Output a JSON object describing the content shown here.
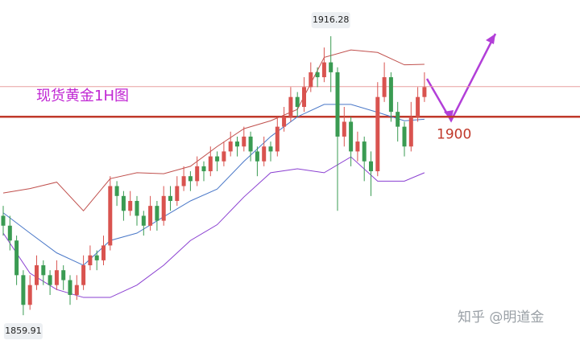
{
  "chart_data": {
    "type": "candlestick",
    "title": "现货黄金1H图",
    "watermark": "知乎 @明道金",
    "ylim": [
      1854.9,
      1923.6
    ],
    "up_color": "#d9534f",
    "down_color": "#3a9b52",
    "candles": [
      [
        1880,
        1882,
        1876,
        1878
      ],
      [
        1878,
        1880,
        1873,
        1875
      ],
      [
        1875,
        1876,
        1866,
        1868
      ],
      [
        1868,
        1869,
        1859.91,
        1862
      ],
      [
        1862,
        1868,
        1861,
        1866
      ],
      [
        1866,
        1872,
        1865,
        1870
      ],
      [
        1870,
        1871,
        1866,
        1868
      ],
      [
        1868,
        1869,
        1864,
        1866
      ],
      [
        1866,
        1871,
        1865,
        1869
      ],
      [
        1869,
        1870,
        1865,
        1867
      ],
      [
        1867,
        1868,
        1862,
        1864
      ],
      [
        1864,
        1868,
        1863,
        1866
      ],
      [
        1866,
        1872,
        1865,
        1870
      ],
      [
        1870,
        1874,
        1869,
        1872
      ],
      [
        1872,
        1873,
        1869,
        1871
      ],
      [
        1871,
        1876,
        1870,
        1874
      ],
      [
        1874,
        1888,
        1873,
        1886
      ],
      [
        1886,
        1887,
        1882,
        1884
      ],
      [
        1884,
        1885,
        1879,
        1881
      ],
      [
        1881,
        1885,
        1880,
        1883
      ],
      [
        1883,
        1884,
        1878,
        1880
      ],
      [
        1880,
        1881,
        1876,
        1878
      ],
      [
        1878,
        1884,
        1877,
        1882
      ],
      [
        1882,
        1883,
        1877,
        1879
      ],
      [
        1879,
        1886,
        1878,
        1884
      ],
      [
        1884,
        1886,
        1881,
        1883
      ],
      [
        1883,
        1888,
        1882,
        1886
      ],
      [
        1886,
        1890,
        1885,
        1888
      ],
      [
        1888,
        1889,
        1885,
        1887
      ],
      [
        1887,
        1892,
        1886,
        1890
      ],
      [
        1890,
        1891,
        1887,
        1889
      ],
      [
        1889,
        1894,
        1888,
        1892
      ],
      [
        1892,
        1893,
        1889,
        1891
      ],
      [
        1891,
        1895,
        1890,
        1893
      ],
      [
        1893,
        1897,
        1892,
        1895
      ],
      [
        1895,
        1896,
        1892,
        1894
      ],
      [
        1894,
        1898,
        1893,
        1896
      ],
      [
        1896,
        1897,
        1891,
        1893
      ],
      [
        1893,
        1894,
        1888,
        1891
      ],
      [
        1891,
        1896,
        1890,
        1894
      ],
      [
        1894,
        1895,
        1891,
        1893
      ],
      [
        1893,
        1900,
        1892,
        1898
      ],
      [
        1898,
        1902,
        1897,
        1900
      ],
      [
        1900,
        1906,
        1899,
        1904
      ],
      [
        1904,
        1905,
        1900,
        1902
      ],
      [
        1902,
        1908,
        1901,
        1906
      ],
      [
        1906,
        1911,
        1905,
        1909
      ],
      [
        1909,
        1910,
        1906,
        1908
      ],
      [
        1908,
        1914,
        1907,
        1911
      ],
      [
        1911,
        1916.28,
        1905,
        1909
      ],
      [
        1909,
        1910,
        1881,
        1896
      ],
      [
        1896,
        1902,
        1894,
        1899
      ],
      [
        1899,
        1900,
        1890,
        1893
      ],
      [
        1893,
        1897,
        1891,
        1895
      ],
      [
        1895,
        1896,
        1887,
        1891
      ],
      [
        1891,
        1893,
        1884,
        1889
      ],
      [
        1889,
        1907,
        1888,
        1904
      ],
      [
        1904,
        1911,
        1903,
        1908
      ],
      [
        1908,
        1909,
        1899,
        1901
      ],
      [
        1901,
        1903,
        1895,
        1898
      ],
      [
        1898,
        1899,
        1892,
        1894
      ],
      [
        1894,
        1903,
        1893,
        1900
      ],
      [
        1900,
        1906,
        1899,
        1904
      ],
      [
        1904,
        1909,
        1903,
        1906
      ]
    ],
    "bands": {
      "x": [
        0,
        4,
        8,
        12,
        16,
        20,
        24,
        28,
        32,
        36,
        40,
        44,
        48,
        52,
        56,
        60,
        63
      ],
      "series": [
        {
          "color": "#c0504d",
          "values": [
            1884.6,
            1885.5,
            1886.8,
            1881,
            1887.5,
            1888.7,
            1888.5,
            1890,
            1894,
            1897.6,
            1899.2,
            1901.5,
            1912,
            1913.5,
            1913,
            1910.5,
            1910.6
          ]
        },
        {
          "color": "#4a78c8",
          "values": [
            1880.6,
            1876.5,
            1872.5,
            1870,
            1875,
            1876.5,
            1879.8,
            1883,
            1885.4,
            1891,
            1896,
            1900,
            1902.5,
            1902.5,
            1900.9,
            1899.2,
            1899.5
          ]
        },
        {
          "color": "#8a3fd1",
          "values": [
            1876.5,
            1868.4,
            1865.1,
            1863.5,
            1863.5,
            1866,
            1870,
            1875,
            1878.2,
            1883.8,
            1888.7,
            1889.5,
            1888.7,
            1891.9,
            1887,
            1887,
            1888.7
          ]
        }
      ]
    },
    "levels": [
      {
        "value": 1900,
        "label": "1900",
        "color": "#c0392b",
        "width": 2.5
      },
      {
        "value": 1906.1,
        "color": "#e8a0a0",
        "width": 1
      }
    ],
    "high_label_index": 49,
    "low_label_index": 3
  }
}
